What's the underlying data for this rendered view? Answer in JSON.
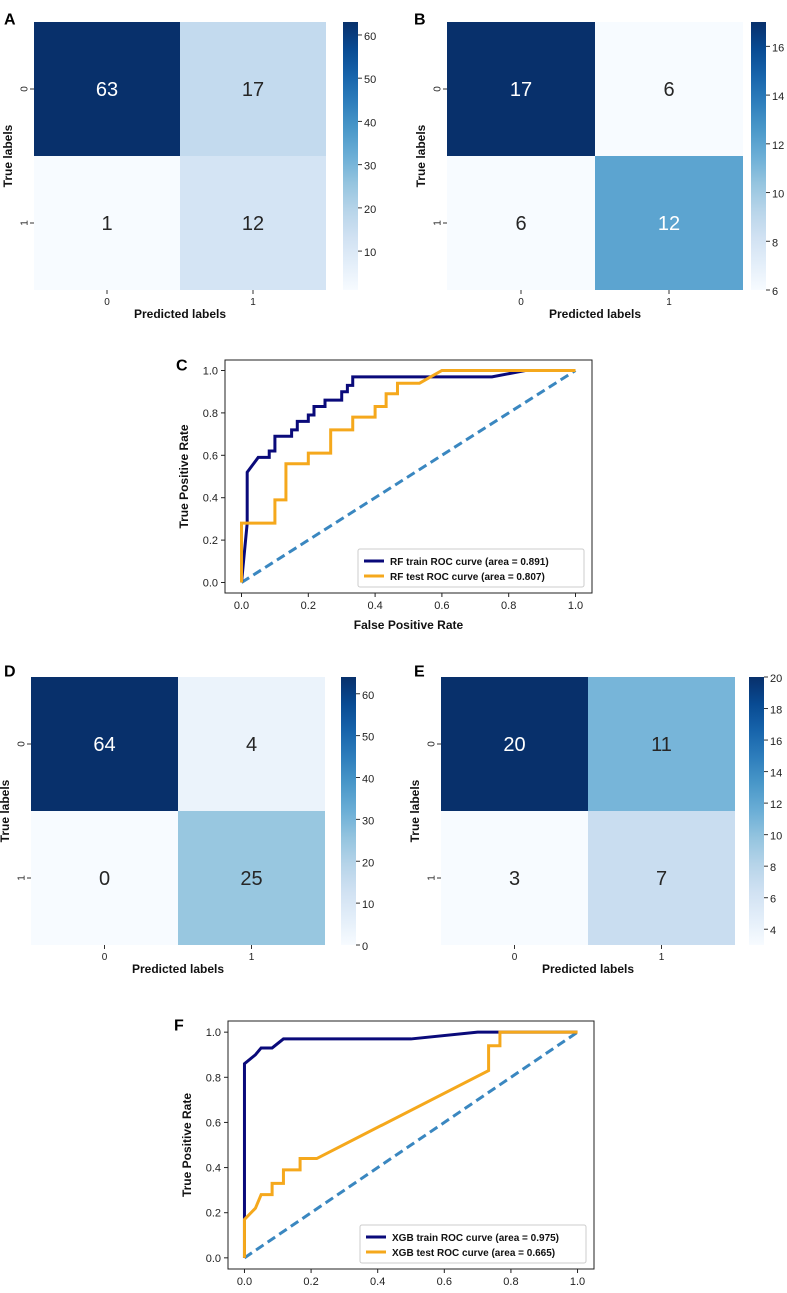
{
  "chart_data": [
    {
      "panel": "A",
      "type": "heatmap",
      "title": "",
      "xlabel": "Predicted labels",
      "ylabel": "True labels",
      "x_ticks": [
        "0",
        "1"
      ],
      "y_ticks": [
        "0",
        "1"
      ],
      "values": [
        [
          63,
          17
        ],
        [
          1,
          12
        ]
      ],
      "colorbar": {
        "range": [
          1,
          63
        ],
        "ticks": [
          10,
          20,
          30,
          40,
          50,
          60
        ]
      }
    },
    {
      "panel": "B",
      "type": "heatmap",
      "title": "",
      "xlabel": "Predicted labels",
      "ylabel": "True labels",
      "x_ticks": [
        "0",
        "1"
      ],
      "y_ticks": [
        "0",
        "1"
      ],
      "values": [
        [
          17,
          6
        ],
        [
          6,
          12
        ]
      ],
      "colorbar": {
        "range": [
          6,
          17
        ],
        "ticks": [
          6,
          8,
          10,
          12,
          14,
          16
        ]
      }
    },
    {
      "panel": "C",
      "type": "line",
      "xlabel": "False Positive Rate",
      "ylabel": "True Positive Rate",
      "xlim": [
        0,
        1
      ],
      "ylim": [
        0,
        1
      ],
      "x_ticks": [
        "0.0",
        "0.2",
        "0.4",
        "0.6",
        "0.8",
        "1.0"
      ],
      "y_ticks": [
        "0.0",
        "0.2",
        "0.4",
        "0.6",
        "0.8",
        "1.0"
      ],
      "legend_position": "lower-right",
      "series": [
        {
          "name": "RF train ROC curve (area = 0.891)",
          "color": "#0a0a7a",
          "style": "solid",
          "points": [
            [
              0,
              0
            ],
            [
              0.017,
              0.28
            ],
            [
              0.017,
              0.52
            ],
            [
              0.05,
              0.59
            ],
            [
              0.083,
              0.59
            ],
            [
              0.083,
              0.62
            ],
            [
              0.1,
              0.62
            ],
            [
              0.1,
              0.69
            ],
            [
              0.15,
              0.69
            ],
            [
              0.15,
              0.72
            ],
            [
              0.167,
              0.72
            ],
            [
              0.167,
              0.76
            ],
            [
              0.2,
              0.76
            ],
            [
              0.2,
              0.79
            ],
            [
              0.217,
              0.79
            ],
            [
              0.217,
              0.83
            ],
            [
              0.25,
              0.83
            ],
            [
              0.25,
              0.86
            ],
            [
              0.283,
              0.86
            ],
            [
              0.3,
              0.86
            ],
            [
              0.3,
              0.9
            ],
            [
              0.317,
              0.9
            ],
            [
              0.317,
              0.93
            ],
            [
              0.333,
              0.93
            ],
            [
              0.333,
              0.97
            ],
            [
              0.55,
              0.97
            ],
            [
              0.75,
              0.97
            ],
            [
              0.85,
              1.0
            ],
            [
              1.0,
              1.0
            ]
          ]
        },
        {
          "name": "RF test ROC curve (area = 0.807)",
          "color": "#f5a81c",
          "style": "solid",
          "points": [
            [
              0,
              0
            ],
            [
              0,
              0.28
            ],
            [
              0.1,
              0.28
            ],
            [
              0.1,
              0.39
            ],
            [
              0.133,
              0.39
            ],
            [
              0.133,
              0.56
            ],
            [
              0.2,
              0.56
            ],
            [
              0.2,
              0.61
            ],
            [
              0.267,
              0.61
            ],
            [
              0.267,
              0.72
            ],
            [
              0.333,
              0.72
            ],
            [
              0.333,
              0.78
            ],
            [
              0.4,
              0.78
            ],
            [
              0.4,
              0.83
            ],
            [
              0.433,
              0.83
            ],
            [
              0.433,
              0.89
            ],
            [
              0.467,
              0.89
            ],
            [
              0.467,
              0.94
            ],
            [
              0.533,
              0.94
            ],
            [
              0.6,
              1.0
            ],
            [
              1.0,
              1.0
            ]
          ]
        },
        {
          "name": "",
          "color": "#3a87c0",
          "style": "dashed",
          "points": [
            [
              0,
              0
            ],
            [
              1,
              1
            ]
          ]
        }
      ]
    },
    {
      "panel": "D",
      "type": "heatmap",
      "title": "",
      "xlabel": "Predicted labels",
      "ylabel": "True labels",
      "x_ticks": [
        "0",
        "1"
      ],
      "y_ticks": [
        "0",
        "1"
      ],
      "values": [
        [
          64,
          4
        ],
        [
          0,
          25
        ]
      ],
      "colorbar": {
        "range": [
          0,
          64
        ],
        "ticks": [
          0,
          10,
          20,
          30,
          40,
          50,
          60
        ]
      }
    },
    {
      "panel": "E",
      "type": "heatmap",
      "title": "",
      "xlabel": "Predicted labels",
      "ylabel": "True labels",
      "x_ticks": [
        "0",
        "1"
      ],
      "y_ticks": [
        "0",
        "1"
      ],
      "values": [
        [
          20,
          11
        ],
        [
          3,
          7
        ]
      ],
      "colorbar": {
        "range": [
          3,
          20
        ],
        "ticks": [
          4,
          6,
          8,
          10,
          12,
          14,
          16,
          18,
          20
        ]
      }
    },
    {
      "panel": "F",
      "type": "line",
      "xlabel": "False Positive Rate",
      "ylabel": "True Positive Rate",
      "xlim": [
        0,
        1
      ],
      "ylim": [
        0,
        1
      ],
      "x_ticks": [
        "0.0",
        "0.2",
        "0.4",
        "0.6",
        "0.8",
        "1.0"
      ],
      "y_ticks": [
        "0.0",
        "0.2",
        "0.4",
        "0.6",
        "0.8",
        "1.0"
      ],
      "legend_position": "lower-right",
      "series": [
        {
          "name": "XGB train ROC curve (area = 0.975)",
          "color": "#0a0a7a",
          "style": "solid",
          "points": [
            [
              0,
              0
            ],
            [
              0,
              0.86
            ],
            [
              0.033,
              0.9
            ],
            [
              0.05,
              0.93
            ],
            [
              0.083,
              0.93
            ],
            [
              0.117,
              0.97
            ],
            [
              0.3,
              0.97
            ],
            [
              0.5,
              0.97
            ],
            [
              0.7,
              1.0
            ],
            [
              1.0,
              1.0
            ]
          ]
        },
        {
          "name": "XGB test ROC curve (area = 0.665)",
          "color": "#f5a81c",
          "style": "solid",
          "points": [
            [
              0,
              0
            ],
            [
              0,
              0.17
            ],
            [
              0.033,
              0.22
            ],
            [
              0.05,
              0.28
            ],
            [
              0.083,
              0.28
            ],
            [
              0.083,
              0.33
            ],
            [
              0.117,
              0.33
            ],
            [
              0.117,
              0.39
            ],
            [
              0.167,
              0.39
            ],
            [
              0.167,
              0.44
            ],
            [
              0.2,
              0.44
            ],
            [
              0.217,
              0.44
            ],
            [
              0.733,
              0.83
            ],
            [
              0.733,
              0.94
            ],
            [
              0.767,
              0.94
            ],
            [
              0.767,
              1.0
            ],
            [
              1.0,
              1.0
            ]
          ]
        },
        {
          "name": "",
          "color": "#3a87c0",
          "style": "dashed",
          "points": [
            [
              0,
              0
            ],
            [
              1,
              1
            ]
          ]
        }
      ]
    }
  ]
}
